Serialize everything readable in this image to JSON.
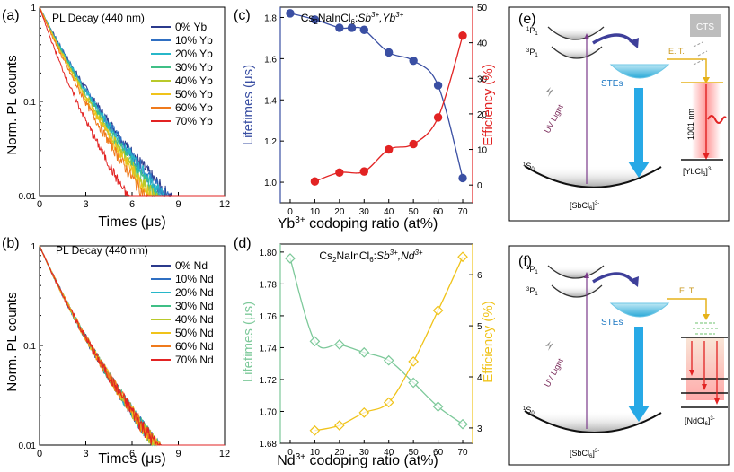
{
  "panels": {
    "a": {
      "label": "(a)",
      "title": "PL Decay (440 nm)",
      "xlabel": "Times (μs)",
      "ylabel": "Norm. PL counts",
      "xticks": [
        "0",
        "3",
        "6",
        "9",
        "12"
      ],
      "yticks": [
        "1",
        "0.1",
        "0.01"
      ]
    },
    "b": {
      "label": "(b)",
      "title": "PL Decay (440 nm)",
      "xlabel": "Times (μs)",
      "ylabel": "Norm. PL counts",
      "xticks": [
        "0",
        "3",
        "6",
        "9",
        "12"
      ],
      "yticks": [
        "1",
        "0.1",
        "0.01"
      ]
    },
    "c": {
      "label": "(c)",
      "title": "Cs2NaInCl6:Sb3+,Yb3+",
      "xlabel": "Yb3+ codoping ratio (at%)",
      "ylabel_left": "Lifetimes (μs)",
      "ylabel_right": "Efficiency (%)",
      "xticks": [
        "0",
        "10",
        "20",
        "30",
        "40",
        "50",
        "60",
        "70"
      ],
      "yticks_left": [
        "1.0",
        "1.2",
        "1.4",
        "1.6",
        "1.8"
      ],
      "yticks_right": [
        "0",
        "10",
        "20",
        "30",
        "40",
        "50"
      ]
    },
    "d": {
      "label": "(d)",
      "title": "Cs2NaInCl6:Sb3+,Nd3+",
      "xlabel": "Nd3+ codoping ratio (at%)",
      "ylabel_left": "Lifetimes (μs)",
      "ylabel_right": "Efficiency (%)",
      "xticks": [
        "0",
        "10",
        "20",
        "30",
        "40",
        "50",
        "60",
        "70"
      ],
      "yticks_left": [
        "1.68",
        "1.70",
        "1.72",
        "1.74",
        "1.76",
        "1.78",
        "1.80"
      ],
      "yticks_right": [
        "3",
        "4",
        "5",
        "6"
      ]
    },
    "e": {
      "label": "(e)",
      "p1": "1P1",
      "p3": "3P1",
      "s0": "1S0",
      "stes": "STEs",
      "uv": "UV Light",
      "et": "E. T.",
      "cts": "CTS",
      "nm": "1001 nm",
      "host": "[SbCl6]3-",
      "acceptor": "[YbCl6]3-"
    },
    "f": {
      "label": "(f)",
      "p1": "1P1",
      "p3": "3P1",
      "s0": "1S0",
      "stes": "STEs",
      "uv": "UV Light",
      "et": "E. T.",
      "host": "[SbCl6]3-",
      "acceptor": "[NdCl6]3-"
    }
  },
  "chart_data": [
    {
      "type": "line",
      "panel": "a",
      "title": "PL Decay (440 nm)",
      "xlabel": "Times (μs)",
      "ylabel": "Norm. PL counts",
      "yscale": "log",
      "xlim": [
        0,
        12
      ],
      "ylim": [
        0.01,
        1
      ],
      "series": [
        {
          "name": "0% Yb",
          "color": "#2b3a8c",
          "tau": [
            1.05,
            2.2
          ]
        },
        {
          "name": "10% Yb",
          "color": "#2f6fc2",
          "tau": [
            1.04,
            2.15
          ]
        },
        {
          "name": "20% Yb",
          "color": "#27b7c9",
          "tau": [
            1.03,
            2.1
          ]
        },
        {
          "name": "30% Yb",
          "color": "#3fbf86",
          "tau": [
            1.0,
            2.0
          ]
        },
        {
          "name": "40% Yb",
          "color": "#b9c92a",
          "tau": [
            0.98,
            1.95
          ]
        },
        {
          "name": "50% Yb",
          "color": "#f0c31a",
          "tau": [
            0.95,
            1.9
          ]
        },
        {
          "name": "60% Yb",
          "color": "#ef7a1c",
          "tau": [
            0.9,
            1.8
          ]
        },
        {
          "name": "70% Yb",
          "color": "#e22323",
          "tau": [
            0.7,
            1.5
          ]
        }
      ]
    },
    {
      "type": "line",
      "panel": "b",
      "title": "PL Decay (440 nm)",
      "xlabel": "Times (μs)",
      "ylabel": "Norm. PL counts",
      "yscale": "log",
      "xlim": [
        0,
        12
      ],
      "ylim": [
        0.01,
        1
      ],
      "series": [
        {
          "name": "0% Nd",
          "color": "#2b3a8c",
          "tau": [
            1.0,
            2.0
          ]
        },
        {
          "name": "10% Nd",
          "color": "#2f6fc2",
          "tau": [
            1.0,
            2.0
          ]
        },
        {
          "name": "20% Nd",
          "color": "#27b7c9",
          "tau": [
            1.0,
            2.0
          ]
        },
        {
          "name": "30% Nd",
          "color": "#3fbf86",
          "tau": [
            1.0,
            2.0
          ]
        },
        {
          "name": "40% Nd",
          "color": "#b9c92a",
          "tau": [
            1.0,
            2.0
          ]
        },
        {
          "name": "50% Nd",
          "color": "#f0c31a",
          "tau": [
            1.0,
            2.0
          ]
        },
        {
          "name": "60% Nd",
          "color": "#ef7a1c",
          "tau": [
            1.0,
            2.0
          ]
        },
        {
          "name": "70% Nd",
          "color": "#e22323",
          "tau": [
            1.0,
            2.0
          ]
        }
      ]
    },
    {
      "type": "line",
      "panel": "c",
      "title": "Cs2NaInCl6:Sb3+,Yb3+",
      "xlabel": "Yb3+ codoping ratio (at%)",
      "xlim": [
        -4,
        74
      ],
      "ylim_left": [
        0.9,
        1.85
      ],
      "ylim_right": [
        -5,
        50
      ],
      "series": [
        {
          "name": "Lifetimes",
          "axis": "left",
          "color": "#3a4fa3",
          "marker": "circle-filled",
          "x": [
            0,
            10,
            20,
            25,
            30,
            40,
            50,
            60,
            70
          ],
          "values": [
            1.82,
            1.79,
            1.75,
            1.75,
            1.74,
            1.63,
            1.59,
            1.47,
            1.02
          ]
        },
        {
          "name": "Efficiency",
          "axis": "right",
          "color": "#e22323",
          "marker": "circle-filled",
          "x": [
            10,
            20,
            30,
            40,
            50,
            60,
            70
          ],
          "values": [
            1.0,
            3.5,
            3.8,
            10.0,
            11.5,
            19.0,
            42.0
          ]
        }
      ]
    },
    {
      "type": "line",
      "panel": "d",
      "title": "Cs2NaInCl6:Sb3+,Nd3+",
      "xlabel": "Nd3+ codoping ratio (at%)",
      "xlim": [
        -4,
        74
      ],
      "ylim_left": [
        1.68,
        1.805
      ],
      "ylim_right": [
        2.7,
        6.6
      ],
      "series": [
        {
          "name": "Lifetimes",
          "axis": "left",
          "color": "#7dc99a",
          "marker": "diamond-open",
          "x": [
            0,
            10,
            20,
            30,
            40,
            50,
            60,
            70
          ],
          "values": [
            1.796,
            1.744,
            1.742,
            1.737,
            1.732,
            1.718,
            1.703,
            1.692
          ]
        },
        {
          "name": "Efficiency",
          "axis": "right",
          "color": "#f0c31a",
          "marker": "diamond-open",
          "x": [
            10,
            20,
            30,
            40,
            50,
            60,
            70
          ],
          "values": [
            2.95,
            3.05,
            3.3,
            3.5,
            4.3,
            5.3,
            6.35
          ]
        }
      ]
    }
  ]
}
